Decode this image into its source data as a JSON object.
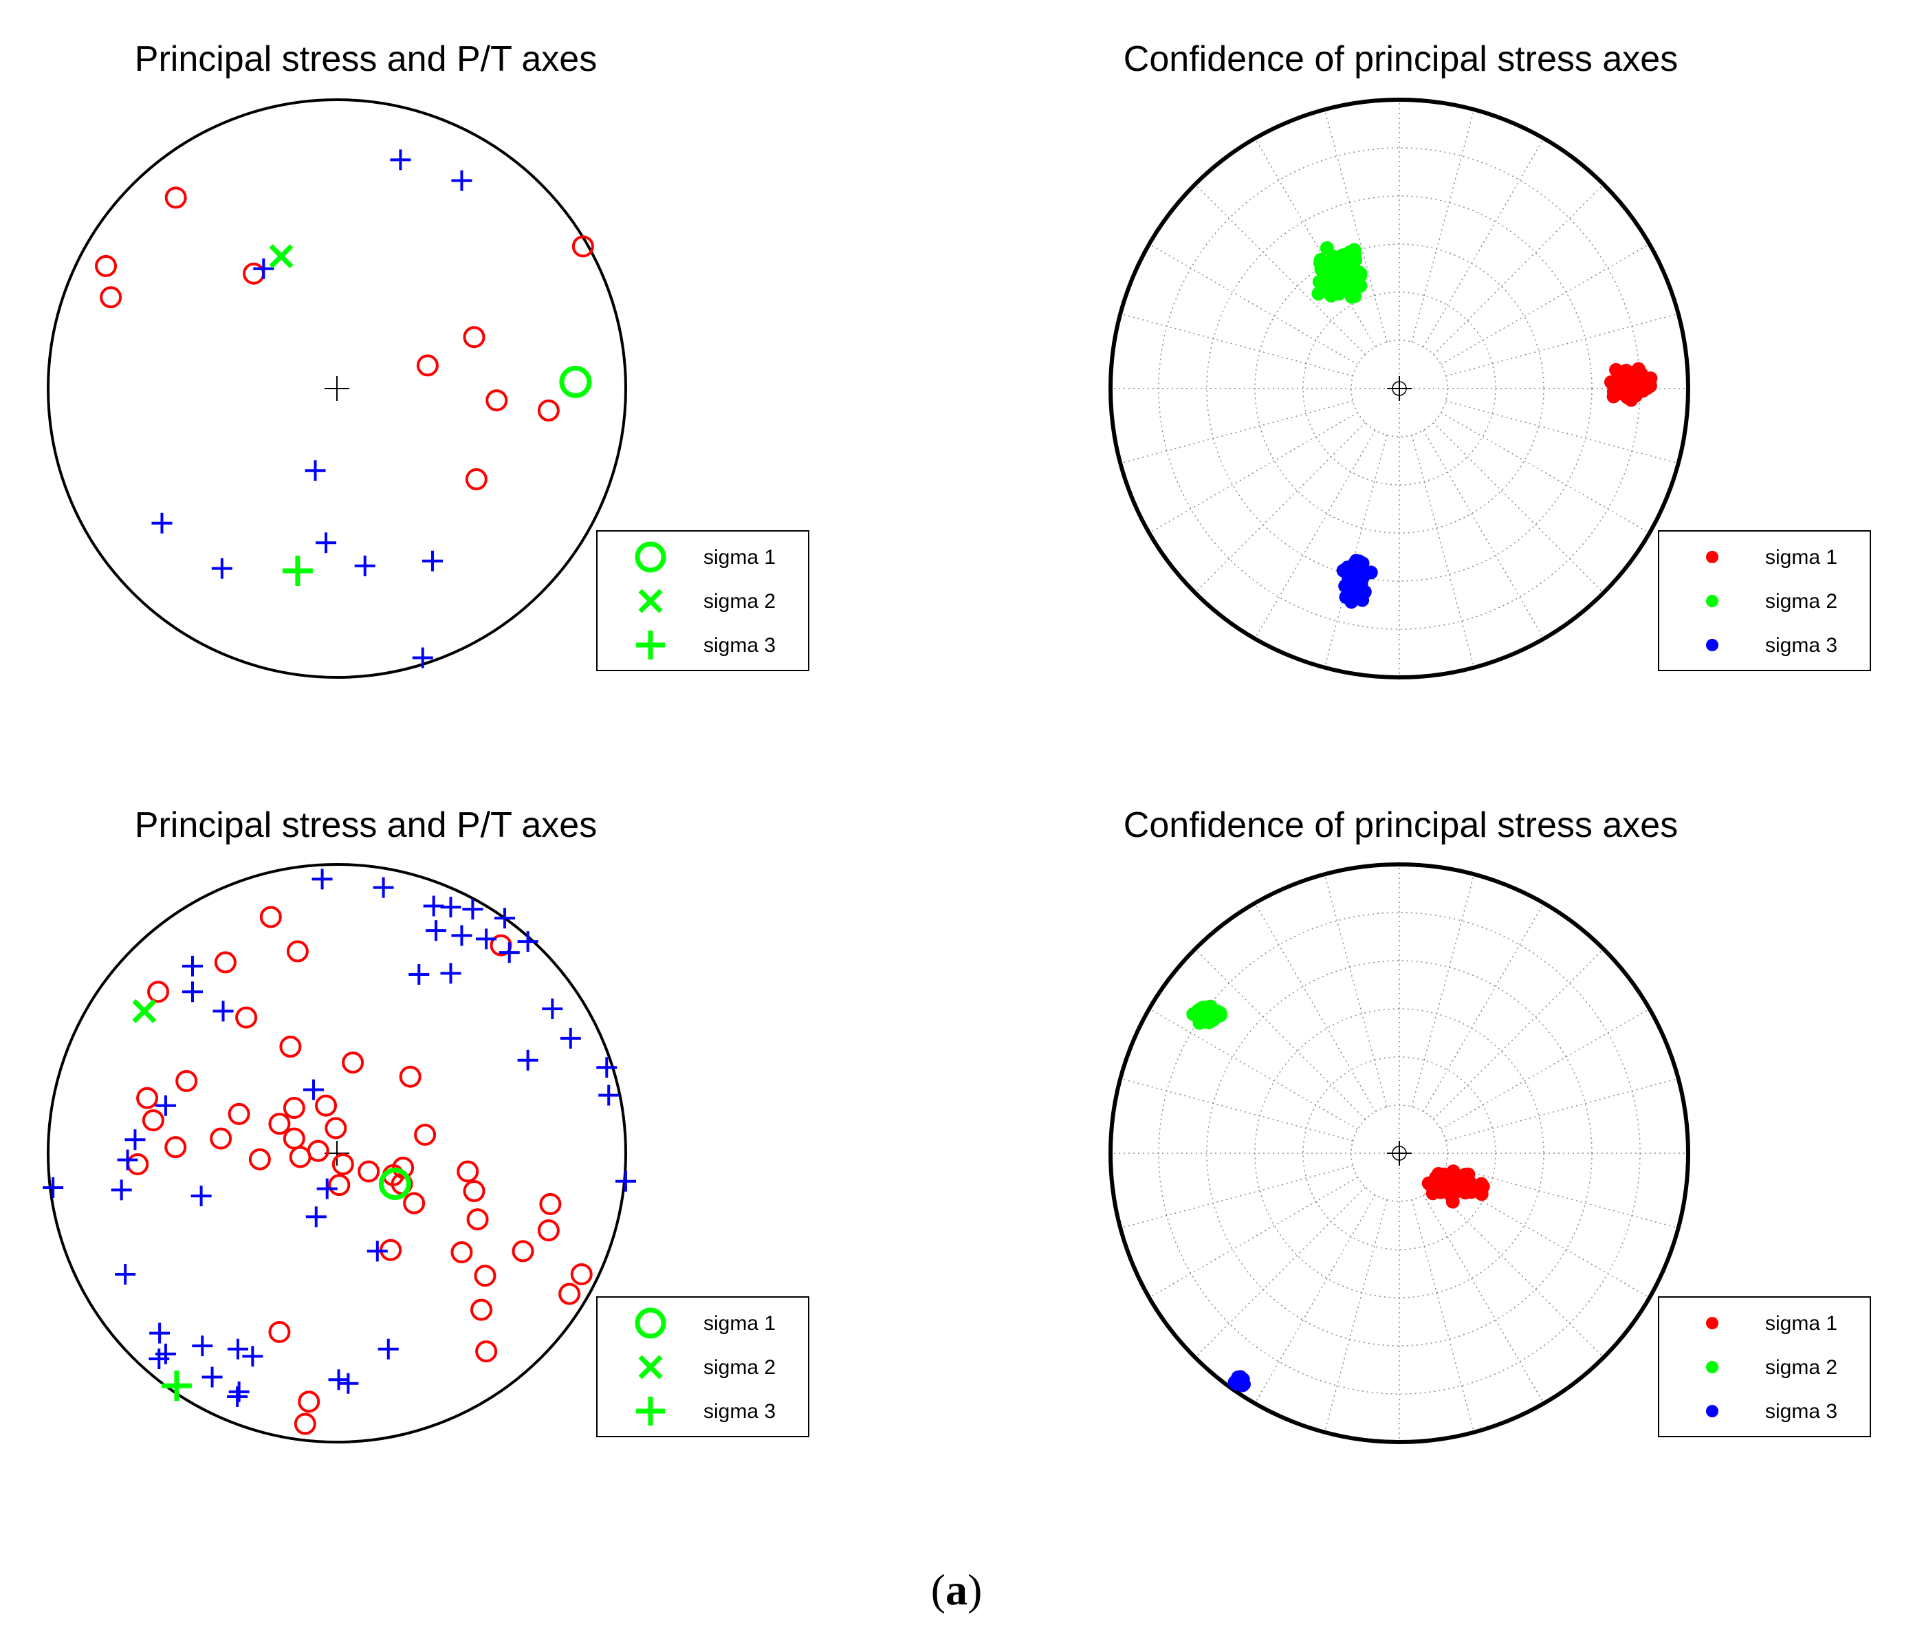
{
  "colors": {
    "p_axis": "#ff0000",
    "t_axis": "#0000ff",
    "sigma": "#00ff00",
    "sigma1_cloud": "#ff0000",
    "sigma2_cloud": "#00ff00",
    "sigma3_cloud": "#0000ff",
    "outline": "#000000",
    "grid": "#888888"
  },
  "caption": {
    "open": "(",
    "letter": "a",
    "close": ")"
  },
  "chart_data": [
    {
      "id": "top-left",
      "type": "scatter",
      "projection": "stereonet, unit circle, x east / y north",
      "title": "Principal stress and P/T axes",
      "grid": false,
      "center_mark": true,
      "legend_position": "bottom-right",
      "legend": [
        {
          "label": "sigma 1",
          "marker": "circle"
        },
        {
          "label": "sigma 2",
          "marker": "x"
        },
        {
          "label": "sigma 3",
          "marker": "plus"
        }
      ],
      "p_axes": [
        [
          -0.558,
          0.661
        ],
        [
          -0.8,
          0.424
        ],
        [
          -0.783,
          0.316
        ],
        [
          -0.288,
          0.398
        ],
        [
          0.852,
          0.492
        ],
        [
          0.475,
          0.178
        ],
        [
          0.314,
          0.08
        ],
        [
          0.553,
          -0.041
        ],
        [
          0.733,
          -0.076
        ],
        [
          0.483,
          -0.314
        ]
      ],
      "t_axes": [
        [
          0.22,
          0.792
        ],
        [
          0.432,
          0.72
        ],
        [
          -0.254,
          0.415
        ],
        [
          -0.075,
          -0.284
        ],
        [
          -0.606,
          -0.466
        ],
        [
          -0.398,
          -0.623
        ],
        [
          -0.038,
          -0.534
        ],
        [
          0.097,
          -0.614
        ],
        [
          0.331,
          -0.597
        ],
        [
          0.297,
          -0.932
        ]
      ],
      "sigma1": [
        0.826,
        0.023
      ],
      "sigma2": [
        -0.193,
        0.458
      ],
      "sigma3": [
        -0.136,
        -0.631
      ]
    },
    {
      "id": "top-right",
      "type": "scatter",
      "projection": "stereonet, unit circle, x east / y north",
      "title": "Confidence of principal stress axes",
      "grid": true,
      "center_mark": true,
      "legend_position": "bottom-right",
      "legend": [
        {
          "label": "sigma 1",
          "marker": "dot"
        },
        {
          "label": "sigma 2",
          "marker": "dot"
        },
        {
          "label": "sigma 3",
          "marker": "dot"
        }
      ],
      "clouds": [
        {
          "name": "sigma 1",
          "center": [
            0.81,
            0.015
          ],
          "spread": [
            0.07,
            0.05
          ],
          "count": 90
        },
        {
          "name": "sigma 2",
          "center": [
            -0.21,
            0.4
          ],
          "spread": [
            0.08,
            0.08
          ],
          "count": 130
        },
        {
          "name": "sigma 3",
          "center": [
            -0.15,
            -0.68
          ],
          "spread": [
            0.04,
            0.08
          ],
          "count": 90
        }
      ]
    },
    {
      "id": "bottom-left",
      "type": "scatter",
      "projection": "stereonet, unit circle, x east / y north",
      "title": "Principal stress and P/T axes",
      "grid": false,
      "center_mark": true,
      "legend_position": "bottom-right",
      "legend": [
        {
          "label": "sigma 1",
          "marker": "circle"
        },
        {
          "label": "sigma 2",
          "marker": "x"
        },
        {
          "label": "sigma 3",
          "marker": "plus"
        }
      ],
      "p_axes": [
        [
          -0.229,
          0.818
        ],
        [
          -0.386,
          0.661
        ],
        [
          -0.136,
          0.699
        ],
        [
          -0.619,
          0.559
        ],
        [
          -0.314,
          0.47
        ],
        [
          0.568,
          0.72
        ],
        [
          -0.161,
          0.369
        ],
        [
          0.055,
          0.314
        ],
        [
          0.254,
          0.265
        ],
        [
          -0.521,
          0.25
        ],
        [
          -0.657,
          0.191
        ],
        [
          -0.339,
          0.136
        ],
        [
          -0.636,
          0.114
        ],
        [
          -0.148,
          0.157
        ],
        [
          -0.038,
          0.165
        ],
        [
          -0.199,
          0.102
        ],
        [
          -0.402,
          0.051
        ],
        [
          -0.559,
          0.021
        ],
        [
          -0.148,
          0.051
        ],
        [
          -0.004,
          0.087
        ],
        [
          -0.267,
          -0.021
        ],
        [
          -0.69,
          -0.038
        ],
        [
          -0.127,
          -0.013
        ],
        [
          -0.065,
          0.008
        ],
        [
          0.021,
          -0.038
        ],
        [
          0.305,
          0.064
        ],
        [
          0.11,
          -0.063
        ],
        [
          0.195,
          -0.076
        ],
        [
          0.229,
          -0.05
        ],
        [
          0.008,
          -0.11
        ],
        [
          0.225,
          -0.106
        ],
        [
          0.453,
          -0.063
        ],
        [
          0.475,
          -0.131
        ],
        [
          0.267,
          -0.173
        ],
        [
          0.739,
          -0.176
        ],
        [
          0.487,
          -0.229
        ],
        [
          0.733,
          -0.267
        ],
        [
          0.644,
          -0.339
        ],
        [
          0.186,
          -0.335
        ],
        [
          0.432,
          -0.343
        ],
        [
          0.513,
          -0.424
        ],
        [
          0.847,
          -0.419
        ],
        [
          0.805,
          -0.487
        ],
        [
          0.5,
          -0.542
        ],
        [
          0.517,
          -0.686
        ],
        [
          -0.199,
          -0.619
        ],
        [
          -0.097,
          -0.86
        ],
        [
          -0.11,
          -0.937
        ]
      ],
      "t_axes": [
        [
          -0.051,
          0.949
        ],
        [
          0.161,
          0.92
        ],
        [
          0.335,
          0.856
        ],
        [
          0.394,
          0.852
        ],
        [
          0.47,
          0.845
        ],
        [
          0.581,
          0.814
        ],
        [
          0.343,
          0.771
        ],
        [
          0.432,
          0.754
        ],
        [
          0.517,
          0.742
        ],
        [
          0.661,
          0.733
        ],
        [
          0.597,
          0.695
        ],
        [
          -0.5,
          0.648
        ],
        [
          0.394,
          0.623
        ],
        [
          0.284,
          0.619
        ],
        [
          -0.5,
          0.559
        ],
        [
          0.746,
          0.5
        ],
        [
          -0.394,
          0.492
        ],
        [
          0.809,
          0.398
        ],
        [
          0.661,
          0.322
        ],
        [
          0.934,
          0.297
        ],
        [
          0.941,
          0.201
        ],
        [
          -0.081,
          0.22
        ],
        [
          -0.593,
          0.165
        ],
        [
          -0.699,
          0.047
        ],
        [
          -0.725,
          -0.023
        ],
        [
          -0.983,
          -0.119
        ],
        [
          -0.746,
          -0.127
        ],
        [
          -0.47,
          -0.148
        ],
        [
          -0.034,
          -0.123
        ],
        [
          -0.072,
          -0.22
        ],
        [
          1.0,
          -0.097
        ],
        [
          0.14,
          -0.339
        ],
        [
          -0.733,
          -0.419
        ],
        [
          -0.614,
          -0.623
        ],
        [
          -0.593,
          -0.695
        ],
        [
          -0.466,
          -0.667
        ],
        [
          -0.343,
          -0.678
        ],
        [
          -0.292,
          -0.703
        ],
        [
          0.178,
          -0.678
        ],
        [
          -0.432,
          -0.775
        ],
        [
          -0.339,
          -0.826
        ],
        [
          -0.345,
          -0.843
        ],
        [
          0.006,
          -0.784
        ],
        [
          0.039,
          -0.797
        ],
        [
          -0.616,
          -0.712
        ]
      ],
      "sigma1": [
        0.201,
        -0.106
      ],
      "sigma2": [
        -0.667,
        0.492
      ],
      "sigma3": [
        -0.555,
        -0.805
      ]
    },
    {
      "id": "bottom-right",
      "type": "scatter",
      "projection": "stereonet, unit circle, x east / y north",
      "title": "Confidence of principal stress axes",
      "grid": true,
      "center_mark": true,
      "legend_position": "bottom-right",
      "legend": [
        {
          "label": "sigma 1",
          "marker": "dot"
        },
        {
          "label": "sigma 2",
          "marker": "dot"
        },
        {
          "label": "sigma 3",
          "marker": "dot"
        }
      ],
      "clouds": [
        {
          "name": "sigma 1",
          "center": [
            0.19,
            -0.11
          ],
          "spread": [
            0.09,
            0.05
          ],
          "count": 70
        },
        {
          "name": "sigma 2",
          "center": [
            -0.67,
            0.48
          ],
          "spread": [
            0.04,
            0.03
          ],
          "count": 110
        },
        {
          "name": "sigma 3",
          "center": [
            -0.55,
            -0.79
          ],
          "spread": [
            0.015,
            0.015
          ],
          "count": 40
        }
      ]
    }
  ]
}
